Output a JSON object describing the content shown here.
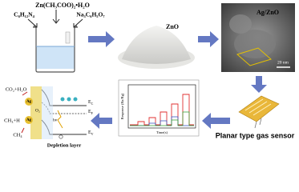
{
  "reagents": {
    "zinc_acetate": "Zn(CH₃COO)₂•H₂O",
    "hmta": "C₆H₁₂N₄",
    "citrate": "Na₃C₆H₅O₇"
  },
  "zno_label": "ZnO",
  "agzno": {
    "label": "Ag/ZnO",
    "scale": "20 nm"
  },
  "sensor_label": "Planar type gas sensor",
  "response_plot": {
    "y_label": "Response (Ra/Rg)",
    "x_label": "Time(s)"
  },
  "mechanism": {
    "products": "CO₂+H₂O",
    "intermediates": "CH₃+H",
    "reactant": "CH₄",
    "ag_top": "Ag",
    "ag_bottom": "Ag",
    "oxygen": "O₂",
    "photon": "hν",
    "ec": "E",
    "ec_sub": "C",
    "ef": "E",
    "ef_sub": "F",
    "ev": "E",
    "ev_sub": "V",
    "depletion": "Depletion layer"
  }
}
